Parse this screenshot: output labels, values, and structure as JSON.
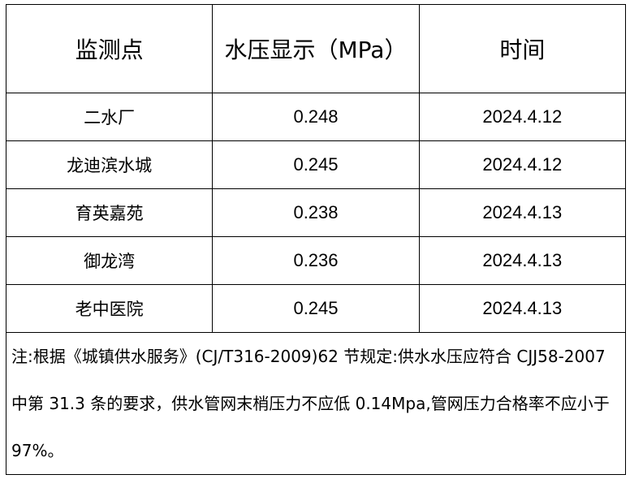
{
  "headers": [
    "监测点",
    "水压显示（MPa）",
    "时间"
  ],
  "rows": [
    {
      "site": "二水厂",
      "pressure": "0.248",
      "date": "2024.4.12"
    },
    {
      "site": "龙迪滨水城",
      "pressure": "0.245",
      "date": "2024.4.12"
    },
    {
      "site": "育英嘉苑",
      "pressure": "0.238",
      "date": "2024.4.13"
    },
    {
      "site": "御龙湾",
      "pressure": "0.236",
      "date": "2024.4.13"
    },
    {
      "site": "老中医院",
      "pressure": "0.245",
      "date": "2024.4.13"
    }
  ],
  "note": "注:根据《城镇供水服务》(CJ/T316-2009)62 节规定:供水水压应符合 CJJ58-2007 中第 31.3 条的要求，供水管网末梢压力不应低 0.14Mpa,管网压力合格率不应小于 97%。"
}
